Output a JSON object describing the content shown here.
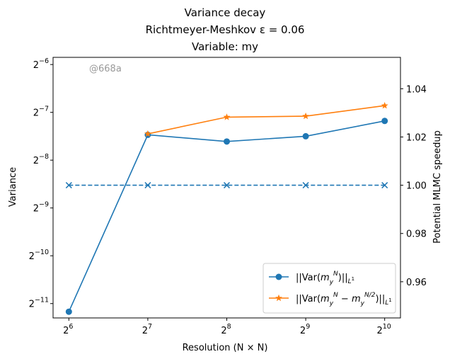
{
  "chart_data": {
    "type": "line",
    "title": [
      "Variance decay",
      "Richtmeyer-Meshkov ε = 0.06",
      "Variable: my"
    ],
    "xlabel": "Resolution (N × N)",
    "ylabel_left": "Variance",
    "ylabel_right": "Potential MLMC speedup",
    "watermark": "@668a",
    "x": [
      6,
      7,
      8,
      9,
      10
    ],
    "x_ticks": [
      "2^6",
      "2^7",
      "2^8",
      "2^9",
      "2^10"
    ],
    "left_axis": {
      "scale": "log2",
      "ylim_log2": [
        -11.3,
        -5.85
      ],
      "ticks_log2": [
        -11,
        -10,
        -9,
        -8,
        -7,
        -6
      ]
    },
    "right_axis": {
      "scale": "linear",
      "ylim": [
        0.945,
        1.053
      ],
      "ticks": [
        0.96,
        0.98,
        1.0,
        1.02,
        1.04
      ]
    },
    "series": [
      {
        "name": "||Var(m_y^N)||_{L^1}",
        "axis": "left",
        "color": "#1f77b4",
        "marker": "circle",
        "linestyle": "solid",
        "values_log2": [
          -11.17,
          -7.47,
          -7.61,
          -7.5,
          -7.18
        ]
      },
      {
        "name": "||Var(m_y^N − m_y^{N/2})||_{L^1}",
        "axis": "left",
        "color": "#ff7f0e",
        "marker": "star",
        "linestyle": "solid",
        "values_log2": [
          null,
          -7.45,
          -7.1,
          -7.08,
          -6.86
        ]
      },
      {
        "name": "",
        "axis": "right",
        "color": "#1f77b4",
        "marker": "x",
        "linestyle": "dashed",
        "values": [
          1.0,
          1.0,
          1.0,
          1.0,
          1.0
        ]
      }
    ],
    "legend_position": "lower-right"
  }
}
